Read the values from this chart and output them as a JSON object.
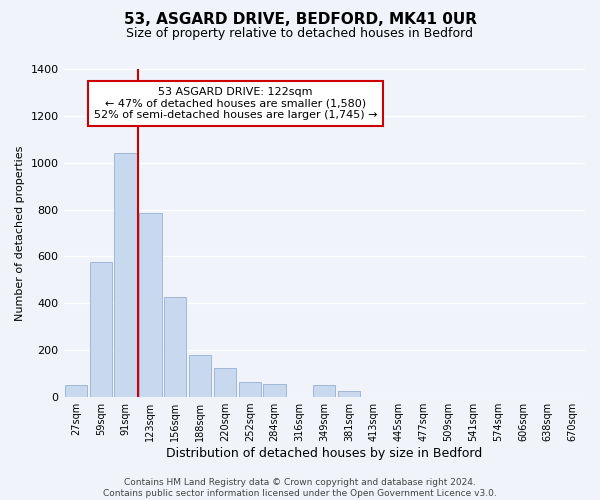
{
  "title": "53, ASGARD DRIVE, BEDFORD, MK41 0UR",
  "subtitle": "Size of property relative to detached houses in Bedford",
  "xlabel": "Distribution of detached houses by size in Bedford",
  "ylabel": "Number of detached properties",
  "bin_labels": [
    "27sqm",
    "59sqm",
    "91sqm",
    "123sqm",
    "156sqm",
    "188sqm",
    "220sqm",
    "252sqm",
    "284sqm",
    "316sqm",
    "349sqm",
    "381sqm",
    "413sqm",
    "445sqm",
    "477sqm",
    "509sqm",
    "541sqm",
    "574sqm",
    "606sqm",
    "638sqm",
    "670sqm"
  ],
  "bar_values": [
    50,
    575,
    1040,
    785,
    425,
    180,
    125,
    65,
    55,
    0,
    50,
    25,
    0,
    0,
    0,
    0,
    0,
    0,
    0,
    0,
    0
  ],
  "bar_color": "#c8d9ef",
  "bar_edge_color": "#a0b8d8",
  "ylim": [
    0,
    1400
  ],
  "yticks": [
    0,
    200,
    400,
    600,
    800,
    1000,
    1200,
    1400
  ],
  "property_line_bin": 3,
  "property_line_color": "#cc0000",
  "annotation_title": "53 ASGARD DRIVE: 122sqm",
  "annotation_line1": "← 47% of detached houses are smaller (1,580)",
  "annotation_line2": "52% of semi-detached houses are larger (1,745) →",
  "annotation_box_color": "#ffffff",
  "annotation_box_edge": "#cc0000",
  "footer_line1": "Contains HM Land Registry data © Crown copyright and database right 2024.",
  "footer_line2": "Contains public sector information licensed under the Open Government Licence v3.0.",
  "background_color": "#f0f4fa"
}
